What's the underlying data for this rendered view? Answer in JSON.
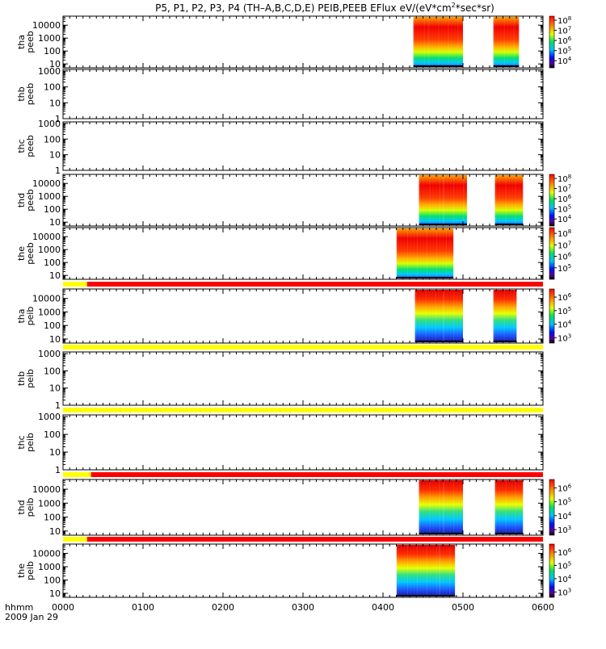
{
  "title_main": "P5, P1, P2, P3, P4 (TH–A,B,C,D,E) PEIB,PEEB EFlux eV/(eV*cm",
  "title_sup": "2",
  "title_tail": "*sec*sr)",
  "x_label": "hhmm",
  "date_label": "2009 Jan 29",
  "x_ticks": [
    "0000",
    "0100",
    "0200",
    "0300",
    "0400",
    "0500",
    "0600"
  ],
  "chart_data": {
    "type": "heatmap",
    "title": "P5, P1, P2, P3, P4 (TH–A,B,C,D,E) PEIB,PEEB EFlux eV/(eV*cm2*sec*sr)",
    "x_axis": {
      "label": "hhmm",
      "range_hours": [
        0,
        6
      ],
      "ticks": [
        "0000",
        "0100",
        "0200",
        "0300",
        "0400",
        "0500",
        "0600"
      ],
      "date": "2009 Jan 29"
    },
    "colors": {
      "red": "#ff0000",
      "yellow": "#ffff00",
      "black": "#000000",
      "white": "#ffffff"
    },
    "panels": [
      {
        "probe": "tha",
        "product": "peeb",
        "y_ticks": [
          "10000",
          "1000",
          "100",
          "10"
        ],
        "y_log_range": [
          0.7,
          4.7
        ],
        "colorbar_ticks": [
          "10^8",
          "10^7",
          "10^6",
          "10^5",
          "10^4"
        ],
        "colorbar_range": [
          3.3,
          8.4
        ],
        "data_blocks": [
          [
            4.38,
            4.56
          ],
          [
            4.56,
            5.0
          ],
          [
            5.38,
            5.7
          ]
        ],
        "status_bar": null
      },
      {
        "probe": "thb",
        "product": "peeb",
        "y_ticks": [
          "1000",
          "100",
          "10",
          "1"
        ],
        "y_log_range": [
          0,
          3.1
        ],
        "colorbar_ticks": [],
        "data_blocks": [],
        "status_bar": null
      },
      {
        "probe": "thc",
        "product": "peeb",
        "y_ticks": [
          "1000",
          "100",
          "10",
          "1"
        ],
        "y_log_range": [
          0,
          3.1
        ],
        "colorbar_ticks": [],
        "data_blocks": [],
        "status_bar": null
      },
      {
        "probe": "thd",
        "product": "peeb",
        "y_ticks": [
          "10000",
          "1000",
          "100",
          "10"
        ],
        "y_log_range": [
          0.7,
          4.7
        ],
        "colorbar_ticks": [
          "10^8",
          "10^7",
          "10^6",
          "10^5",
          "10^4"
        ],
        "colorbar_range": [
          3.3,
          8.4
        ],
        "data_blocks": [
          [
            4.45,
            4.75
          ],
          [
            4.75,
            5.05
          ],
          [
            5.4,
            5.75
          ]
        ],
        "status_bar": null
      },
      {
        "probe": "the",
        "product": "peeb",
        "y_ticks": [
          "10000",
          "1000",
          "100",
          "10"
        ],
        "y_log_range": [
          0.7,
          4.7
        ],
        "colorbar_ticks": [
          "10^8",
          "10^7",
          "10^6",
          "10^5"
        ],
        "colorbar_range": [
          4.0,
          8.5
        ],
        "data_blocks": [
          [
            4.17,
            4.88
          ]
        ],
        "status_bar": {
          "yellow_until_hours": 0.3,
          "red_from_hours": 0.3
        }
      },
      {
        "probe": "tha",
        "product": "peib",
        "y_ticks": [
          "10000",
          "1000",
          "100",
          "10"
        ],
        "y_log_range": [
          0.7,
          4.7
        ],
        "colorbar_ticks": [
          "10^6",
          "10^5",
          "10^4",
          "10^3"
        ],
        "colorbar_range": [
          2.6,
          6.6
        ],
        "data_blocks": [
          [
            4.4,
            4.75
          ],
          [
            4.75,
            5.0
          ],
          [
            5.38,
            5.67
          ]
        ],
        "status_bar": {
          "yellow_until_hours": 6,
          "red_from_hours": 6
        }
      },
      {
        "probe": "thb",
        "product": "peib",
        "y_ticks": [
          "1000",
          "100",
          "10",
          "1"
        ],
        "y_log_range": [
          0,
          3.1
        ],
        "colorbar_ticks": [],
        "data_blocks": [],
        "status_bar": {
          "yellow_until_hours": 6,
          "red_from_hours": 6
        }
      },
      {
        "probe": "thc",
        "product": "peib",
        "y_ticks": [
          "1000",
          "100",
          "10",
          "1"
        ],
        "y_log_range": [
          0,
          3.1
        ],
        "colorbar_ticks": [],
        "data_blocks": [],
        "status_bar": {
          "yellow_until_hours": 0.35,
          "red_from_hours": 0.35
        }
      },
      {
        "probe": "thd",
        "product": "peib",
        "y_ticks": [
          "10000",
          "1000",
          "100",
          "10"
        ],
        "y_log_range": [
          0.7,
          4.7
        ],
        "colorbar_ticks": [
          "10^6",
          "10^5",
          "10^4",
          "10^3"
        ],
        "colorbar_range": [
          2.6,
          6.6
        ],
        "data_blocks": [
          [
            4.45,
            4.75
          ],
          [
            4.75,
            5.0
          ],
          [
            5.4,
            5.75
          ]
        ],
        "status_bar": {
          "yellow_until_hours": 0.3,
          "red_from_hours": 0.3
        }
      },
      {
        "probe": "the",
        "product": "peib",
        "y_ticks": [
          "10000",
          "1000",
          "100",
          "10"
        ],
        "y_log_range": [
          0.7,
          4.7
        ],
        "colorbar_ticks": [
          "10^6",
          "10^5",
          "10^4",
          "10^3"
        ],
        "colorbar_range": [
          2.6,
          6.6
        ],
        "data_blocks": [
          [
            4.17,
            4.7
          ],
          [
            4.7,
            4.9
          ]
        ],
        "status_bar": null
      }
    ]
  }
}
